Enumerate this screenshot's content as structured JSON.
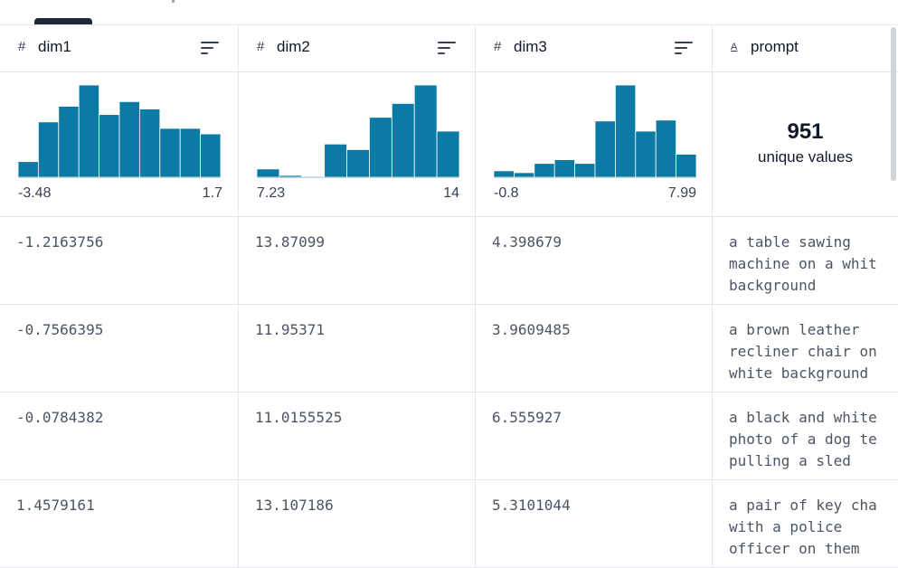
{
  "columns": [
    {
      "type_icon": "#",
      "name": "dim1",
      "min": "-3.48",
      "max": "1.7",
      "hist": [
        0.17,
        0.6,
        0.77,
        1.0,
        0.68,
        0.82,
        0.74,
        0.53,
        0.53,
        0.47
      ]
    },
    {
      "type_icon": "#",
      "name": "dim2",
      "min": "7.23",
      "max": "14",
      "hist": [
        0.09,
        0.02,
        0.01,
        0.36,
        0.3,
        0.65,
        0.8,
        1.0,
        0.5
      ]
    },
    {
      "type_icon": "#",
      "name": "dim3",
      "min": "-0.8",
      "max": "7.99",
      "hist": [
        0.07,
        0.05,
        0.15,
        0.19,
        0.15,
        0.61,
        1.0,
        0.5,
        0.62,
        0.25
      ]
    },
    {
      "type_icon": "A",
      "name": "prompt",
      "unique_count": "951",
      "unique_label": "unique values"
    }
  ],
  "rows": [
    [
      "-1.2163756",
      "13.87099",
      "4.398679",
      "a table sawing\nmachine on a whit\nbackground"
    ],
    [
      "-0.7566395",
      "11.95371",
      "3.9609485",
      "a brown leather\nrecliner chair on\nwhite background"
    ],
    [
      "-0.0784382",
      "11.0155525",
      "6.555927",
      "a black and white\nphoto of a dog te\npulling a sled"
    ],
    [
      "1.4579161",
      "13.107186",
      "5.3101044",
      "a pair of key cha\nwith a police\nofficer on them"
    ]
  ],
  "colors": {
    "bar": "#0b7aa5"
  }
}
